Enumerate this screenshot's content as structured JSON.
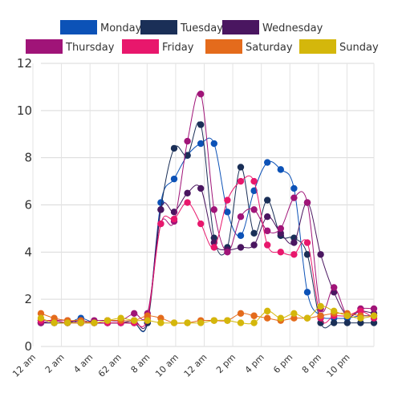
{
  "chart_data": {
    "type": "line",
    "x_ticks": [
      "12 am",
      "2 am",
      "4 am",
      "62 am",
      "8 am",
      "10 am",
      "12 am",
      "2 pm",
      "4 pm",
      "6 pm",
      "8 pm",
      "10 pm"
    ],
    "ylim": [
      0,
      12
    ],
    "yticks": [
      0,
      2,
      4,
      6,
      8,
      10,
      12
    ],
    "grid": true,
    "legend_position": "top",
    "series": [
      {
        "name": "Monday",
        "color": "#0c52b7",
        "values": [
          1.1,
          1.1,
          1.0,
          1.2,
          1.0,
          1.0,
          1.0,
          1.0,
          1.0,
          6.1,
          7.1,
          8.1,
          8.6,
          8.6,
          5.7,
          4.7,
          6.6,
          7.8,
          7.5,
          6.7,
          2.3,
          1.3,
          1.2,
          1.2,
          1.3,
          1.3
        ]
      },
      {
        "name": "Tuesday",
        "color": "#1a2f57",
        "values": [
          1.0,
          1.0,
          1.0,
          1.0,
          1.0,
          1.0,
          1.0,
          1.0,
          1.0,
          5.8,
          8.4,
          8.1,
          9.4,
          4.6,
          4.2,
          7.6,
          4.8,
          6.2,
          4.7,
          4.6,
          3.9,
          1.0,
          1.0,
          1.0,
          1.0,
          1.0
        ]
      },
      {
        "name": "Wednesday",
        "color": "#4a1660",
        "values": [
          1.0,
          1.0,
          1.0,
          1.1,
          1.0,
          1.0,
          1.0,
          1.1,
          1.1,
          5.8,
          5.7,
          6.5,
          6.7,
          4.4,
          4.1,
          4.2,
          4.3,
          5.5,
          4.8,
          4.4,
          6.1,
          3.9,
          2.3,
          1.3,
          1.5,
          1.4
        ]
      },
      {
        "name": "Thursday",
        "color": "#a01478",
        "values": [
          1.0,
          1.1,
          1.1,
          1.0,
          1.1,
          1.1,
          1.1,
          1.4,
          1.4,
          5.2,
          5.3,
          8.7,
          10.7,
          5.8,
          4.0,
          5.5,
          5.8,
          4.9,
          5.0,
          6.3,
          6.1,
          1.6,
          2.5,
          1.3,
          1.6,
          1.6
        ]
      },
      {
        "name": "Friday",
        "color": "#e8176c",
        "values": [
          1.1,
          1.1,
          1.0,
          1.0,
          1.0,
          1.0,
          1.0,
          1.0,
          1.2,
          5.2,
          5.4,
          6.1,
          5.2,
          4.2,
          6.2,
          7.0,
          7.0,
          4.3,
          4.0,
          3.9,
          4.4,
          1.2,
          1.3,
          1.3,
          1.5,
          1.2
        ]
      },
      {
        "name": "Saturday",
        "color": "#e46b1c",
        "values": [
          1.4,
          1.2,
          1.1,
          1.1,
          1.0,
          1.1,
          1.1,
          1.1,
          1.3,
          1.2,
          1.0,
          1.0,
          1.1,
          1.1,
          1.1,
          1.4,
          1.3,
          1.2,
          1.1,
          1.2,
          1.2,
          1.3,
          1.4,
          1.4,
          1.3,
          1.3
        ]
      },
      {
        "name": "Sunday",
        "color": "#d4b70b",
        "values": [
          1.2,
          1.0,
          1.0,
          1.0,
          1.0,
          1.1,
          1.2,
          1.1,
          1.1,
          1.0,
          1.0,
          1.0,
          1.0,
          1.1,
          1.1,
          1.0,
          1.0,
          1.5,
          1.2,
          1.4,
          1.2,
          1.7,
          1.5,
          1.3,
          1.2,
          1.3
        ]
      }
    ]
  }
}
